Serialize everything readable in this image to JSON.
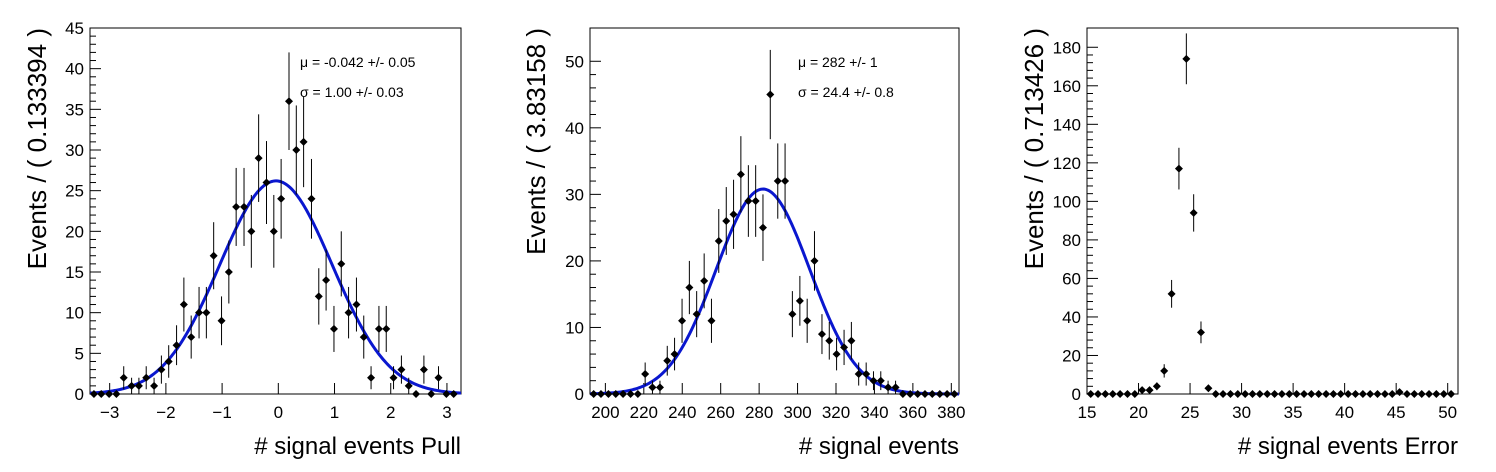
{
  "chart_data": [
    {
      "type": "scatter",
      "xlabel": "# signal events Pull",
      "ylabel": "Events / ( 0.133394 )",
      "xlim": [
        -3.35,
        3.25
      ],
      "ylim": [
        0,
        45
      ],
      "xticks": [
        -3,
        -2,
        -1,
        0,
        1,
        2,
        3
      ],
      "xtick_labels": [
        "−3",
        "−2",
        "−1",
        "0",
        "1",
        "2",
        "3"
      ],
      "yticks": [
        0,
        5,
        10,
        15,
        20,
        25,
        30,
        35,
        40,
        45
      ],
      "annotations": [
        "μ = -0.042 +/- 0.05",
        "σ =  1.00 +/- 0.03"
      ],
      "fit": {
        "mean": -0.042,
        "sigma": 1.0,
        "amplitude": 26.2,
        "color": "#0a17cf"
      },
      "points": {
        "x": [
          -3.28,
          -3.15,
          -3.01,
          -2.88,
          -2.75,
          -2.61,
          -2.48,
          -2.35,
          -2.21,
          -2.08,
          -1.95,
          -1.81,
          -1.68,
          -1.55,
          -1.41,
          -1.28,
          -1.15,
          -1.01,
          -0.88,
          -0.75,
          -0.61,
          -0.48,
          -0.35,
          -0.21,
          -0.08,
          0.05,
          0.19,
          0.32,
          0.45,
          0.59,
          0.72,
          0.85,
          0.99,
          1.12,
          1.25,
          1.39,
          1.52,
          1.65,
          1.79,
          1.92,
          2.05,
          2.19,
          2.32,
          2.45,
          2.59,
          2.72,
          2.85,
          2.99,
          3.12
        ],
        "y": [
          0,
          0,
          0,
          0,
          2,
          1,
          1,
          2,
          1,
          3,
          4,
          6,
          11,
          7,
          10,
          10,
          17,
          9,
          15,
          23,
          23,
          20,
          29,
          26,
          20,
          24,
          36,
          30,
          31,
          24,
          12,
          14,
          8,
          16,
          10,
          11,
          7,
          2,
          8,
          8,
          2,
          3,
          1,
          0,
          3,
          0,
          2,
          0,
          0
        ]
      }
    },
    {
      "type": "scatter",
      "xlabel": "# signal events",
      "ylabel": "Events / ( 3.83158 )",
      "xlim": [
        192,
        384
      ],
      "ylim": [
        0,
        55
      ],
      "xticks": [
        200,
        220,
        240,
        260,
        280,
        300,
        320,
        340,
        360,
        380
      ],
      "yticks": [
        0,
        10,
        20,
        30,
        40,
        50
      ],
      "annotations": [
        "μ =  282 +/- 1",
        "σ =  24.4 +/- 0.8"
      ],
      "fit": {
        "mean": 282,
        "sigma": 24.4,
        "amplitude": 30.8,
        "color": "#0a17cf"
      },
      "points": {
        "x": [
          193.9,
          197.7,
          201.6,
          205.4,
          209.2,
          213.1,
          216.9,
          220.7,
          224.5,
          228.4,
          232.2,
          236.0,
          239.9,
          243.7,
          247.5,
          251.4,
          255.2,
          259.0,
          262.9,
          266.7,
          270.5,
          274.4,
          278.2,
          282.0,
          285.8,
          289.7,
          293.5,
          297.3,
          301.2,
          305.0,
          308.8,
          312.7,
          316.5,
          320.3,
          324.2,
          328.0,
          331.8,
          335.7,
          339.5,
          343.3,
          347.1,
          351.0,
          354.8,
          358.6,
          362.5,
          366.3,
          370.1,
          374.0,
          377.8,
          381.6
        ],
        "y": [
          0,
          0,
          0,
          0,
          0,
          0,
          0,
          3,
          1,
          1,
          5,
          6,
          11,
          16,
          12,
          17,
          11,
          23,
          26,
          27,
          33,
          29,
          29,
          25,
          45,
          32,
          32,
          12,
          14,
          11,
          20,
          9,
          8,
          6,
          7,
          8,
          3,
          3,
          2,
          2,
          1,
          1,
          0,
          0,
          0,
          0,
          0,
          0,
          0,
          0
        ]
      }
    },
    {
      "type": "scatter",
      "xlabel": "# signal events Error",
      "ylabel": "Events / ( 0.713426 )",
      "xlim": [
        15,
        51
      ],
      "ylim": [
        0,
        190
      ],
      "xticks": [
        15,
        20,
        25,
        30,
        35,
        40,
        45,
        50
      ],
      "yticks": [
        0,
        20,
        40,
        60,
        80,
        100,
        120,
        140,
        160,
        180
      ],
      "points": {
        "x": [
          15.36,
          16.07,
          16.78,
          17.5,
          18.21,
          18.93,
          19.64,
          20.35,
          21.07,
          21.78,
          22.49,
          23.21,
          23.92,
          24.64,
          25.35,
          26.06,
          26.78,
          27.49,
          28.2,
          28.92,
          29.63,
          30.35,
          31.06,
          31.77,
          32.49,
          33.2,
          33.91,
          34.63,
          35.34,
          36.06,
          36.77,
          37.48,
          38.2,
          38.91,
          39.62,
          40.34,
          41.05,
          41.77,
          42.48,
          43.19,
          43.91,
          44.62,
          45.33,
          46.05,
          46.76,
          47.48,
          48.19,
          48.9,
          49.62,
          50.33
        ],
        "y": [
          0,
          0,
          0,
          0,
          0,
          0,
          0,
          2,
          2,
          4,
          12,
          52,
          117,
          174,
          94,
          32,
          3,
          0,
          0,
          0,
          0,
          0,
          0,
          0,
          0,
          0,
          0,
          0,
          0,
          0,
          0,
          0,
          0,
          0,
          0,
          0,
          0,
          0,
          0,
          0,
          0,
          0,
          1,
          0,
          0,
          0,
          0,
          0,
          0,
          0
        ]
      }
    }
  ]
}
